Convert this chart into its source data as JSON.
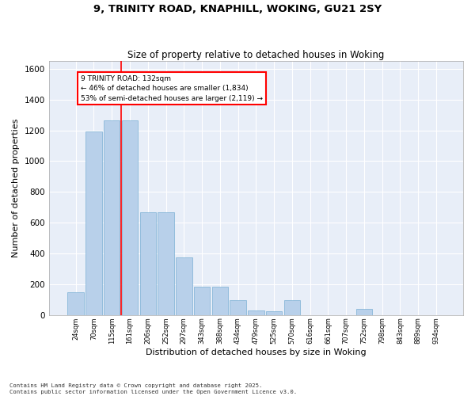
{
  "title1": "9, TRINITY ROAD, KNAPHILL, WOKING, GU21 2SY",
  "title2": "Size of property relative to detached houses in Woking",
  "xlabel": "Distribution of detached houses by size in Woking",
  "ylabel": "Number of detached properties",
  "categories": [
    "24sqm",
    "70sqm",
    "115sqm",
    "161sqm",
    "206sqm",
    "252sqm",
    "297sqm",
    "343sqm",
    "388sqm",
    "434sqm",
    "479sqm",
    "525sqm",
    "570sqm",
    "616sqm",
    "661sqm",
    "707sqm",
    "752sqm",
    "798sqm",
    "843sqm",
    "889sqm",
    "934sqm"
  ],
  "values": [
    150,
    1195,
    1265,
    1265,
    670,
    670,
    375,
    185,
    185,
    95,
    30,
    22,
    95,
    0,
    0,
    0,
    40,
    0,
    0,
    0,
    0
  ],
  "bar_color": "#b8d0ea",
  "bar_edge_color": "#7aafd4",
  "vline_x": 2.5,
  "vline_color": "red",
  "annotation_text": "9 TRINITY ROAD: 132sqm\n← 46% of detached houses are smaller (1,834)\n53% of semi-detached houses are larger (2,119) →",
  "ylim_max": 1650,
  "yticks": [
    0,
    200,
    400,
    600,
    800,
    1000,
    1200,
    1400,
    1600
  ],
  "bg_color": "#e8eef8",
  "grid_color": "#ffffff",
  "footer1": "Contains HM Land Registry data © Crown copyright and database right 2025.",
  "footer2": "Contains public sector information licensed under the Open Government Licence v3.0."
}
